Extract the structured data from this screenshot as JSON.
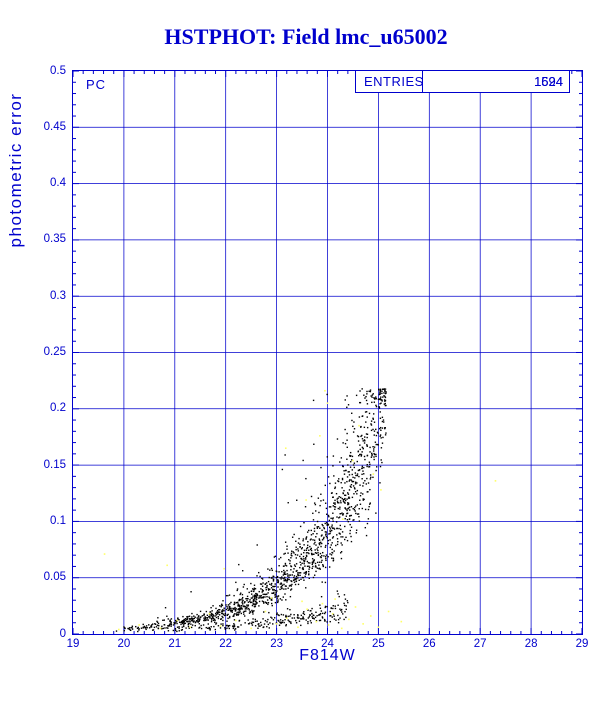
{
  "chart_data": {
    "type": "scatter",
    "title": "HSTPHOT: Field lmc_u65002",
    "xlabel": "F814W",
    "ylabel": "photometric error",
    "xlim": [
      19,
      29
    ],
    "ylim": [
      0,
      0.5
    ],
    "x_ticks": [
      19,
      20,
      21,
      22,
      23,
      24,
      25,
      26,
      27,
      28,
      29
    ],
    "x_tick_labels": [
      "19",
      "20",
      "21",
      "22",
      "23",
      "24",
      "25",
      "26",
      "27",
      "28",
      "29"
    ],
    "y_ticks": [
      0,
      0.05,
      0.1,
      0.15,
      0.2,
      0.25,
      0.3,
      0.35,
      0.4,
      0.45,
      0.5
    ],
    "y_tick_labels": [
      "0",
      "0.05",
      "0.1",
      "0.15",
      "0.2",
      "0.25",
      "0.3",
      "0.35",
      "0.4",
      "0.45",
      "0.5"
    ],
    "x_minor_step": 0.2,
    "y_minor_step": 0.01,
    "grid": true,
    "axis_color": "#0000cd",
    "background": "#ffffff",
    "chip_label": "PC",
    "stats": {
      "label": "ENTRIES",
      "values": [
        "1694",
        "1524"
      ]
    },
    "series": [
      {
        "name": "pc-detections-main-error-curve",
        "color": "#000000",
        "marker_px": 1.4,
        "model": {
          "seed": 1337,
          "count": 1400,
          "mag_min": 19.75,
          "mag_range": 5.4,
          "e0": 0.0045,
          "k": 0.75,
          "ref_mag": 20,
          "noise_sigma": 0.21,
          "outlier_frac": 0.028,
          "outlier_mult_min": 1.4,
          "outlier_mult_max": 3.2,
          "e_min": 0.0025,
          "e_max": 0.218,
          "cap_jitter": 0.014
        }
      },
      {
        "name": "pc-detections-bright-lower-sequence",
        "color": "#000000",
        "marker_px": 1.4,
        "model": {
          "seed": 777,
          "count": 260,
          "mag_min": 20.1,
          "mag_range": 4.3,
          "e0": 0.0025,
          "k": 0.5,
          "ref_mag": 20,
          "noise_sigma": 0.3,
          "outlier_frac": 0.02,
          "outlier_mult_min": 1.3,
          "outlier_mult_max": 2.5,
          "e_min": 0.002,
          "e_max": 0.218,
          "cap_jitter": 0.014
        }
      },
      {
        "name": "flagged-detections-yellow",
        "color": "#ffff66",
        "marker_px": 1.6,
        "points": [
          [
            19.62,
            0.071
          ],
          [
            19.9,
            0.004
          ],
          [
            20.3,
            0.008
          ],
          [
            20.72,
            0.005
          ],
          [
            20.85,
            0.061
          ],
          [
            21.05,
            0.012
          ],
          [
            21.3,
            0.006
          ],
          [
            21.68,
            0.018
          ],
          [
            21.9,
            0.007
          ],
          [
            21.97,
            0.058
          ],
          [
            22.2,
            0.012
          ],
          [
            22.5,
            0.005
          ],
          [
            22.78,
            0.02
          ],
          [
            22.9,
            0.032
          ],
          [
            23.0,
            0.009
          ],
          [
            23.18,
            0.165
          ],
          [
            23.2,
            0.014
          ],
          [
            23.42,
            0.006
          ],
          [
            23.5,
            0.029
          ],
          [
            23.58,
            0.119
          ],
          [
            23.6,
            0.022
          ],
          [
            23.78,
            0.011
          ],
          [
            23.85,
            0.176
          ],
          [
            23.9,
            0.027
          ],
          [
            23.95,
            0.216
          ],
          [
            24.0,
            0.205
          ],
          [
            24.02,
            0.008
          ],
          [
            24.1,
            0.018
          ],
          [
            24.15,
            0.031
          ],
          [
            24.28,
            0.005
          ],
          [
            24.3,
            0.102
          ],
          [
            24.42,
            0.013
          ],
          [
            24.5,
            0.154
          ],
          [
            24.55,
            0.024
          ],
          [
            24.62,
            0.185
          ],
          [
            24.7,
            0.009
          ],
          [
            24.85,
            0.016
          ],
          [
            24.9,
            0.142
          ],
          [
            25.0,
            0.006
          ],
          [
            25.05,
            0.128
          ],
          [
            25.2,
            0.02
          ],
          [
            25.45,
            0.011
          ],
          [
            27.3,
            0.136
          ]
        ]
      }
    ]
  }
}
